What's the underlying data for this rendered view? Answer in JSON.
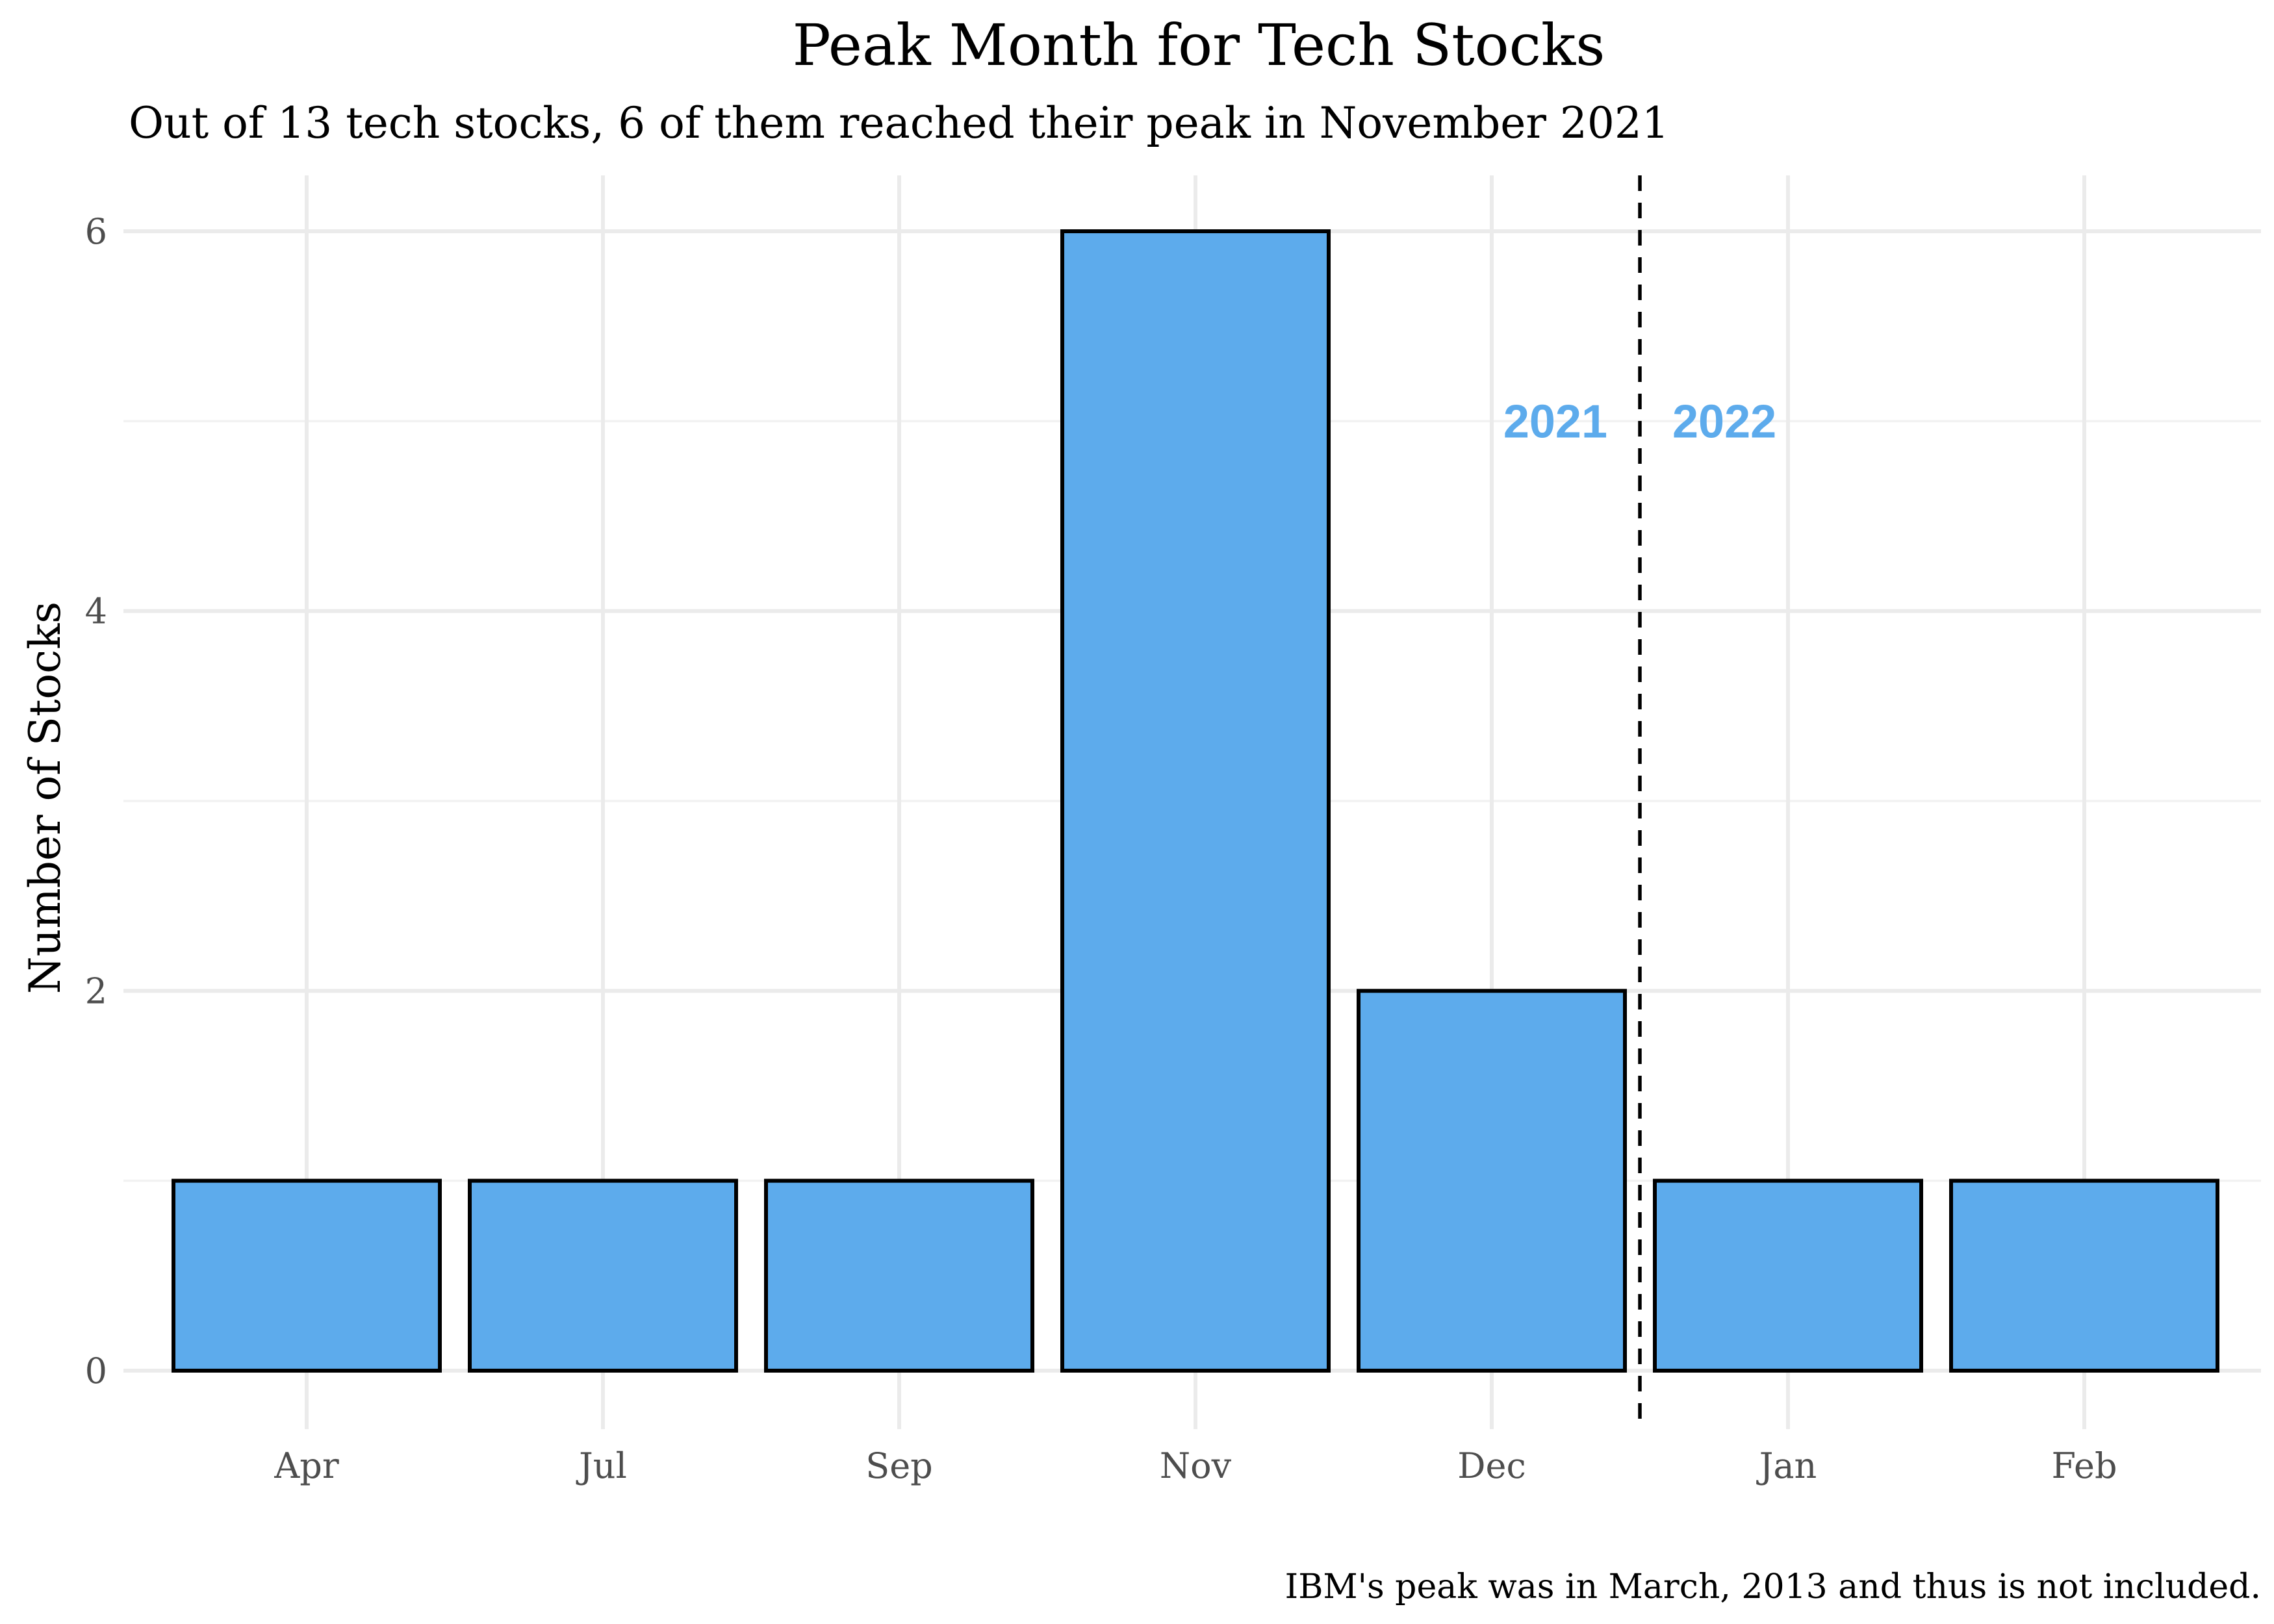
{
  "chart_data": {
    "type": "bar",
    "title": "Peak Month for Tech Stocks",
    "subtitle": "Out of 13 tech stocks, 6 of them reached their peak in November 2021",
    "ylabel": "Number of Stocks",
    "xlabel": "",
    "caption": "IBM's peak was in March, 2013 and thus is not included.",
    "categories": [
      "Apr",
      "Jul",
      "Sep",
      "Nov",
      "Dec",
      "Jan",
      "Feb"
    ],
    "values": [
      1,
      1,
      1,
      6,
      2,
      1,
      1
    ],
    "ylim": [
      0,
      6.3
    ],
    "yticks": [
      0,
      2,
      4,
      6
    ],
    "ytick_labels": [
      "0",
      "2",
      "4",
      "6"
    ],
    "grid": true,
    "legend": "none",
    "bar_color": "#5DABEC",
    "bar_outline_color": "#000000",
    "year_divider": {
      "after_category": "Dec",
      "style": "dashed",
      "color": "#000000"
    },
    "annotations": [
      {
        "text": "2021",
        "y": 5,
        "side": "left",
        "color": "#5DABEC"
      },
      {
        "text": "2022",
        "y": 5,
        "side": "right",
        "color": "#5DABEC"
      }
    ]
  }
}
